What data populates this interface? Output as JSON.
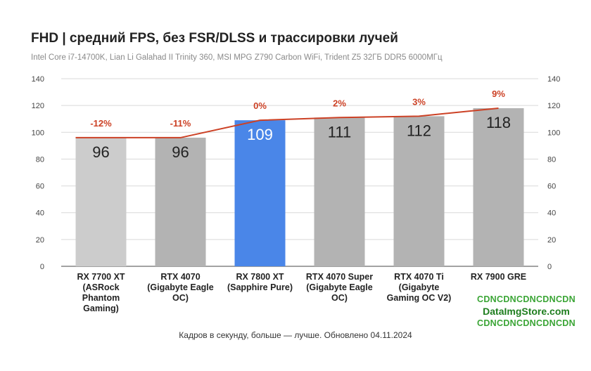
{
  "chart_data": {
    "type": "bar",
    "title": "FHD | средний FPS, без FSR/DLSS и трассировки лучей",
    "subtitle": "Intel Core i7-14700K, Lian Li Galahad II Trinity 360, MSI MPG Z790 Carbon WiFi, Trident Z5 32ГБ DDR5 6000МГц",
    "footer": "Кадров в секунду, больше — лучше. Обновлено 04.11.2024",
    "categories": [
      [
        "RX 7700 XT",
        "(ASRock",
        "Phantom",
        "Gaming)"
      ],
      [
        "RTX 4070",
        "(Gigabyte Eagle",
        "OC)"
      ],
      [
        "RX 7800 XT",
        "(Sapphire Pure)"
      ],
      [
        "RTX 4070 Super",
        "(Gigabyte Eagle",
        "OC)"
      ],
      [
        "RTX 4070 Ti",
        "(Gigabyte",
        "Gaming OC V2)"
      ],
      [
        "RX 7900 GRE"
      ]
    ],
    "values": [
      96,
      96,
      109,
      111,
      112,
      118
    ],
    "value_labels": [
      "96",
      "96",
      "109",
      "111",
      "112",
      "118"
    ],
    "diff_labels": [
      "-12%",
      "-11%",
      "0%",
      "2%",
      "3%",
      "9%"
    ],
    "bar_colors": [
      "#cccccc",
      "#b3b3b3",
      "#4a86e8",
      "#b3b3b3",
      "#b3b3b3",
      "#b3b3b3"
    ],
    "line_color": "#cc4125",
    "ylim": [
      0,
      140
    ],
    "y_ticks": [
      "0",
      "20",
      "40",
      "60",
      "80",
      "100",
      "120",
      "140"
    ],
    "right_axis_ticks": [
      "0",
      "20",
      "40",
      "60",
      "80",
      "100",
      "120",
      "140"
    ],
    "grid": true,
    "legend": "none"
  },
  "watermark": {
    "line1": "CDNCDNCDNCDNCDN",
    "line2": "DataImgStore.com",
    "line3": "CDNCDNCDNCDNCDN"
  }
}
